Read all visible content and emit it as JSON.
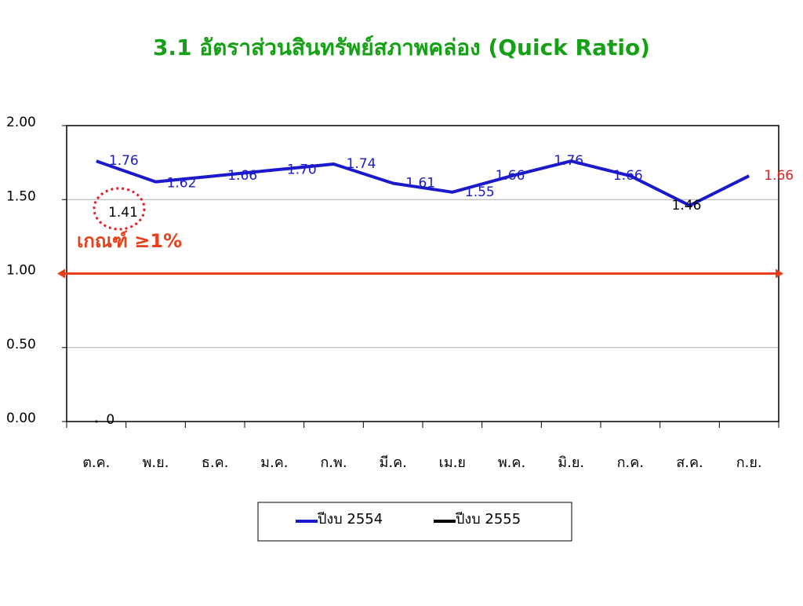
{
  "chart_data": {
    "type": "line",
    "title": "3.1 อัตราส่วนสินทรัพย์สภาพคล่อง (Quick Ratio)",
    "categories": [
      "ต.ค.",
      "พ.ย.",
      "ธ.ค.",
      "ม.ค.",
      "ก.พ.",
      "มี.ค.",
      "เม.ย",
      "พ.ค.",
      "มิ.ย.",
      "ก.ค.",
      "ส.ค.",
      "ก.ย."
    ],
    "series": [
      {
        "name": "ปีงบ 2554",
        "color": "#1a1acc",
        "values": [
          1.76,
          1.62,
          1.66,
          1.7,
          1.74,
          1.61,
          1.55,
          1.66,
          1.76,
          1.66,
          1.46,
          1.66
        ],
        "value_labels": [
          "1.76",
          "1.62",
          "1.66",
          "1.70",
          "1.74",
          "1.61",
          "1.55",
          "1.66",
          "1.76",
          "1.66",
          "1.46",
          "1.66"
        ],
        "value_label_colors": [
          "#1a1acc",
          "#1a1acc",
          "#1a1acc",
          "#1a1acc",
          "#1a1acc",
          "#1a1acc",
          "#1a1acc",
          "#1a1acc",
          "#1a1acc",
          "#1a1acc",
          "#000000",
          "#e02020"
        ]
      },
      {
        "name": "ปีงบ 2555",
        "color": "#000000",
        "values": [
          0,
          null,
          null,
          null,
          null,
          null,
          null,
          null,
          null,
          null,
          null,
          null
        ]
      }
    ],
    "ylim": [
      0,
      2
    ],
    "yticks": [
      {
        "value": 0,
        "label": "0.00"
      },
      {
        "value": 0.5,
        "label": "0.50"
      },
      {
        "value": 1,
        "label": "1.00"
      },
      {
        "value": 1.5,
        "label": "1.50"
      },
      {
        "value": 2,
        "label": "2.00"
      }
    ],
    "grid": true,
    "threshold": {
      "value": 1,
      "label": "เกณฑ์ ≥1%",
      "color": "#e8401a"
    },
    "annotation": "1.41",
    "legend": "bottom"
  }
}
